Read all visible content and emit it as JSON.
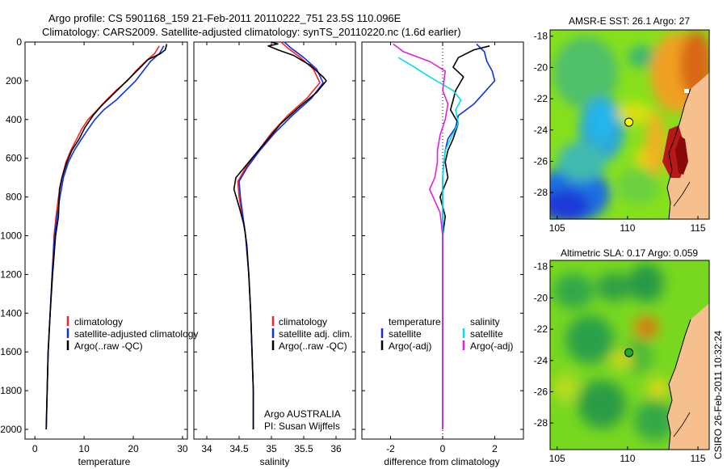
{
  "figure": {
    "title_line1": "Argo profile: CS 5901168_159 21-Feb-2011 20110222_751 23.5S 110.096E",
    "title_line2": "Climatology: CARS2009. Satellite-adjusted climatology: synTS_20110220.nc (1.6d earlier)",
    "credit": "CSIRO 26-Feb-2011 10:32:24"
  },
  "colors": {
    "climatology": "#ff2020",
    "satellite": "#1030e0",
    "argo": "#000000",
    "satellite_salinity": "#00e0e8",
    "argo_salinity": "#e020e0"
  },
  "chart_data": [
    {
      "type": "line",
      "xlabel": "temperature",
      "xlim": [
        -2,
        31
      ],
      "xticks": [
        0,
        10,
        20,
        30
      ],
      "ylim": [
        2050,
        0
      ],
      "yticks": [
        0,
        200,
        400,
        600,
        800,
        1000,
        1200,
        1400,
        1600,
        1800,
        2000
      ],
      "legend": [
        "climatology",
        "satellite-adjusted climatology",
        "Argo(..raw -QC)"
      ],
      "series": [
        {
          "name": "climatology",
          "color": "#ff2020",
          "points": [
            [
              25.3,
              20
            ],
            [
              24.3,
              60
            ],
            [
              22.5,
              100
            ],
            [
              20.5,
              150
            ],
            [
              18.8,
              200
            ],
            [
              16.5,
              250
            ],
            [
              14.5,
              300
            ],
            [
              12.7,
              350
            ],
            [
              10.8,
              400
            ],
            [
              9.5,
              450
            ],
            [
              8.5,
              500
            ],
            [
              7.3,
              560
            ],
            [
              6.3,
              620
            ],
            [
              5.5,
              700
            ],
            [
              4.8,
              800
            ],
            [
              4.3,
              900
            ],
            [
              3.9,
              1000
            ],
            [
              3.5,
              1200
            ],
            [
              3.1,
              1400
            ],
            [
              2.7,
              1600
            ],
            [
              2.5,
              1800
            ],
            [
              2.3,
              2000
            ]
          ]
        },
        {
          "name": "satellite-adjusted climatology",
          "color": "#1030e0",
          "points": [
            [
              26.2,
              20
            ],
            [
              25.3,
              60
            ],
            [
              23.5,
              100
            ],
            [
              22.0,
              150
            ],
            [
              20.5,
              200
            ],
            [
              18.5,
              250
            ],
            [
              16.5,
              300
            ],
            [
              14.0,
              350
            ],
            [
              12.2,
              400
            ],
            [
              10.8,
              450
            ],
            [
              9.5,
              500
            ],
            [
              8.0,
              560
            ],
            [
              6.8,
              620
            ],
            [
              5.8,
              700
            ],
            [
              5.1,
              800
            ],
            [
              4.5,
              900
            ],
            [
              4.0,
              1000
            ],
            [
              3.5,
              1200
            ],
            [
              3.1,
              1400
            ],
            [
              2.7,
              1600
            ],
            [
              2.5,
              1800
            ],
            [
              2.3,
              2000
            ]
          ]
        },
        {
          "name": "Argo(..raw -QC)",
          "color": "#000000",
          "points": [
            [
              26.8,
              10
            ],
            [
              26.5,
              40
            ],
            [
              25.5,
              60
            ],
            [
              23.0,
              90
            ],
            [
              21.5,
              130
            ],
            [
              19.5,
              180
            ],
            [
              17.5,
              230
            ],
            [
              15.5,
              280
            ],
            [
              13.5,
              330
            ],
            [
              11.8,
              380
            ],
            [
              10.2,
              440
            ],
            [
              9.0,
              500
            ],
            [
              7.5,
              560
            ],
            [
              6.5,
              620
            ],
            [
              5.5,
              700
            ],
            [
              5.0,
              760
            ],
            [
              4.8,
              900
            ],
            [
              4.2,
              1000
            ],
            [
              3.6,
              1200
            ],
            [
              3.1,
              1400
            ],
            [
              2.7,
              1600
            ],
            [
              2.5,
              1800
            ],
            [
              2.3,
              2000
            ]
          ]
        }
      ]
    },
    {
      "type": "line",
      "xlabel": "salinity",
      "xlim": [
        33.8,
        36.3
      ],
      "xticks": [
        34,
        34.5,
        35,
        35.5,
        36
      ],
      "ylim": [
        2050,
        0
      ],
      "legend": [
        "climatology",
        "satellite adj. clim.",
        "Argo(..raw -QC)"
      ],
      "annotation_line1": "Argo AUSTRALIA",
      "annotation_line2": "PI: Susan Wijffels",
      "series": [
        {
          "name": "climatology",
          "color": "#ff2020",
          "points": [
            [
              35.15,
              0
            ],
            [
              35.25,
              30
            ],
            [
              35.45,
              80
            ],
            [
              35.65,
              140
            ],
            [
              35.75,
              210
            ],
            [
              35.55,
              290
            ],
            [
              35.25,
              380
            ],
            [
              35.0,
              470
            ],
            [
              34.8,
              560
            ],
            [
              34.6,
              650
            ],
            [
              34.48,
              720
            ],
            [
              34.5,
              800
            ],
            [
              34.55,
              900
            ],
            [
              34.6,
              1000
            ],
            [
              34.65,
              1200
            ],
            [
              34.68,
              1400
            ],
            [
              34.7,
              1600
            ],
            [
              34.72,
              1800
            ],
            [
              34.72,
              2000
            ]
          ]
        },
        {
          "name": "satellite adj. clim.",
          "color": "#1030e0",
          "points": [
            [
              35.2,
              0
            ],
            [
              35.3,
              30
            ],
            [
              35.5,
              80
            ],
            [
              35.7,
              140
            ],
            [
              35.8,
              210
            ],
            [
              35.62,
              290
            ],
            [
              35.32,
              380
            ],
            [
              35.05,
              470
            ],
            [
              34.82,
              560
            ],
            [
              34.62,
              650
            ],
            [
              34.5,
              720
            ],
            [
              34.52,
              800
            ],
            [
              34.56,
              900
            ],
            [
              34.6,
              1000
            ],
            [
              34.65,
              1200
            ],
            [
              34.68,
              1400
            ],
            [
              34.7,
              1600
            ],
            [
              34.72,
              1800
            ],
            [
              34.72,
              2000
            ]
          ]
        },
        {
          "name": "Argo(..raw -QC)",
          "color": "#000000",
          "points": [
            [
              35.0,
              0
            ],
            [
              35.1,
              10
            ],
            [
              34.95,
              20
            ],
            [
              35.1,
              40
            ],
            [
              35.35,
              70
            ],
            [
              35.6,
              120
            ],
            [
              35.8,
              180
            ],
            [
              35.85,
              200
            ],
            [
              35.7,
              260
            ],
            [
              35.45,
              330
            ],
            [
              35.15,
              420
            ],
            [
              34.95,
              500
            ],
            [
              34.7,
              600
            ],
            [
              34.45,
              700
            ],
            [
              34.42,
              760
            ],
            [
              34.5,
              850
            ],
            [
              34.58,
              950
            ],
            [
              34.62,
              1050
            ],
            [
              34.65,
              1200
            ],
            [
              34.68,
              1400
            ],
            [
              34.7,
              1600
            ],
            [
              34.72,
              1800
            ],
            [
              34.72,
              2000
            ]
          ]
        }
      ]
    },
    {
      "type": "line",
      "xlabel": "difference from climatology",
      "xlim": [
        -3.1,
        3.1
      ],
      "xticks": [
        -2,
        0,
        2
      ],
      "ylim": [
        2050,
        0
      ],
      "legend_left_title": "temperature",
      "legend_left": [
        "satellite",
        "Argo(-adj)"
      ],
      "legend_right_title": "salinity",
      "legend_right": [
        "satellite",
        "Argo(-adj)"
      ],
      "series": [
        {
          "name": "temperature satellite",
          "color": "#1030e0",
          "points": [
            [
              1.3,
              10
            ],
            [
              1.6,
              50
            ],
            [
              1.7,
              100
            ],
            [
              1.9,
              150
            ],
            [
              2.0,
              200
            ],
            [
              1.6,
              260
            ],
            [
              1.2,
              320
            ],
            [
              0.6,
              380
            ],
            [
              0.5,
              440
            ],
            [
              0.2,
              500
            ],
            [
              0.1,
              560
            ],
            [
              0.05,
              620
            ],
            [
              0.0,
              700
            ],
            [
              0.0,
              900
            ],
            [
              0.0,
              1200
            ],
            [
              0.0,
              1600
            ],
            [
              0.0,
              2000
            ]
          ]
        },
        {
          "name": "temperature Argo(-adj)",
          "color": "#000000",
          "points": [
            [
              1.8,
              20
            ],
            [
              1.2,
              40
            ],
            [
              0.6,
              80
            ],
            [
              0.4,
              130
            ],
            [
              0.8,
              180
            ],
            [
              0.5,
              250
            ],
            [
              0.4,
              300
            ],
            [
              0.3,
              350
            ],
            [
              0.6,
              420
            ],
            [
              0.4,
              500
            ],
            [
              0.2,
              560
            ],
            [
              0.1,
              620
            ],
            [
              0.2,
              700
            ],
            [
              -0.1,
              800
            ],
            [
              0.1,
              900
            ],
            [
              0.0,
              1000
            ],
            [
              0.0,
              1200
            ],
            [
              0.0,
              1600
            ],
            [
              0.0,
              2000
            ]
          ]
        },
        {
          "name": "salinity satellite",
          "color": "#00e0e8",
          "points": [
            [
              -1.7,
              80
            ],
            [
              -1.2,
              120
            ],
            [
              -0.5,
              180
            ],
            [
              0.4,
              250
            ],
            [
              0.7,
              300
            ],
            [
              0.5,
              350
            ],
            [
              0.6,
              420
            ],
            [
              0.3,
              500
            ],
            [
              0.1,
              560
            ],
            [
              0.05,
              620
            ],
            [
              0.0,
              700
            ],
            [
              0.0,
              1000
            ],
            [
              0.0,
              1500
            ],
            [
              0.0,
              2000
            ]
          ]
        },
        {
          "name": "salinity Argo(-adj)",
          "color": "#e020e0",
          "points": [
            [
              -1.9,
              10
            ],
            [
              -1.5,
              50
            ],
            [
              -0.5,
              100
            ],
            [
              0.1,
              150
            ],
            [
              0.0,
              250
            ],
            [
              0.2,
              320
            ],
            [
              0.1,
              400
            ],
            [
              -0.1,
              480
            ],
            [
              -0.2,
              560
            ],
            [
              -0.2,
              620
            ],
            [
              -0.3,
              700
            ],
            [
              -0.5,
              760
            ],
            [
              -0.3,
              820
            ],
            [
              -0.1,
              880
            ],
            [
              0.0,
              1000
            ],
            [
              0.0,
              1500
            ],
            [
              0.0,
              2000
            ]
          ]
        }
      ]
    }
  ],
  "maps": [
    {
      "title": "AMSR-E SST: 26.1 Argo: 27",
      "xticks": [
        105,
        110,
        115
      ],
      "yticks": [
        -18,
        -20,
        -22,
        -24,
        -26,
        -28
      ],
      "xlim": [
        104.5,
        115.8
      ],
      "ylim": [
        -29.7,
        -17.6
      ],
      "marker": [
        110.1,
        -23.5
      ],
      "marker_color": "#ffff00"
    },
    {
      "title": "Altimetric SLA: 0.17 Argo: 0.059",
      "xticks": [
        105,
        110,
        115
      ],
      "yticks": [
        -18,
        -20,
        -22,
        -24,
        -26,
        -28
      ],
      "xlim": [
        104.5,
        115.8
      ],
      "ylim": [
        -29.7,
        -17.6
      ],
      "marker": [
        110.1,
        -23.5
      ],
      "marker_color": "#22aa22"
    }
  ]
}
